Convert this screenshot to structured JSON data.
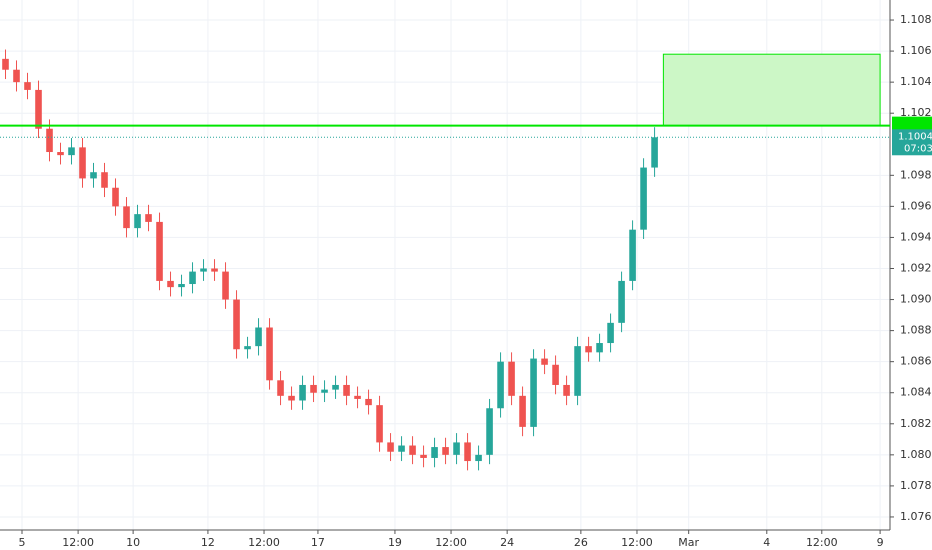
{
  "chart_data": {
    "type": "candlestick",
    "up_color": "#26a69a",
    "down_color": "#ef5350",
    "grid": true,
    "xlim": [
      0,
      80.9
    ],
    "xticks": [
      {
        "value": 2,
        "label": "5"
      },
      {
        "value": 7.1,
        "label": "12:00"
      },
      {
        "value": 12.1,
        "label": "10"
      },
      {
        "value": 18.9,
        "label": "12"
      },
      {
        "value": 24,
        "label": "12:00"
      },
      {
        "value": 28.9,
        "label": "17"
      },
      {
        "value": 35.9,
        "label": "19"
      },
      {
        "value": 41,
        "label": "12:00"
      },
      {
        "value": 46.1,
        "label": "24"
      },
      {
        "value": 52.8,
        "label": "26"
      },
      {
        "value": 57.9,
        "label": "12:00"
      },
      {
        "value": 62.6,
        "label": "Mar"
      },
      {
        "value": 69.7,
        "label": "4"
      },
      {
        "value": 74.7,
        "label": "12:00"
      },
      {
        "value": 80,
        "label": "9"
      }
    ],
    "ylim": [
      1.07516,
      1.10929
    ],
    "yticks": [
      {
        "value": 1.076,
        "label": "1.07600"
      },
      {
        "value": 1.078,
        "label": "1.07800"
      },
      {
        "value": 1.08,
        "label": "1.08000"
      },
      {
        "value": 1.082,
        "label": "1.08200"
      },
      {
        "value": 1.084,
        "label": "1.08400"
      },
      {
        "value": 1.086,
        "label": "1.08600"
      },
      {
        "value": 1.088,
        "label": "1.08800"
      },
      {
        "value": 1.09,
        "label": "1.09000"
      },
      {
        "value": 1.092,
        "label": "1.09200"
      },
      {
        "value": 1.094,
        "label": "1.09400"
      },
      {
        "value": 1.096,
        "label": "1.09600"
      },
      {
        "value": 1.098,
        "label": "1.09800"
      },
      {
        "value": 1.102,
        "label": "1.10200"
      },
      {
        "value": 1.104,
        "label": "1.10400"
      },
      {
        "value": 1.106,
        "label": "1.10600"
      },
      {
        "value": 1.108,
        "label": "1.10800"
      }
    ],
    "x": [
      0.5,
      1.5,
      2.5,
      3.5,
      4.5,
      5.5,
      6.5,
      7.5,
      8.5,
      9.5,
      10.5,
      11.5,
      12.5,
      13.5,
      14.5,
      15.5,
      16.5,
      17.5,
      18.5,
      19.5,
      20.5,
      21.5,
      22.5,
      23.5,
      24.5,
      25.5,
      26.5,
      27.5,
      28.5,
      29.5,
      30.5,
      31.5,
      32.5,
      33.5,
      34.5,
      35.5,
      36.5,
      37.5,
      38.5,
      39.5,
      40.5,
      41.5,
      42.5,
      43.5,
      44.5,
      45.5,
      46.5,
      47.5,
      48.5,
      49.5,
      50.5,
      51.5,
      52.5,
      53.5,
      54.5,
      55.5,
      56.5,
      57.5,
      58.5,
      59.5
    ],
    "open": [
      1.1055,
      1.1048,
      1.104,
      1.1035,
      1.101,
      1.0995,
      1.0993,
      1.0998,
      1.0978,
      1.0982,
      1.0972,
      1.096,
      1.0946,
      1.0955,
      1.095,
      1.0912,
      1.0908,
      1.091,
      1.0918,
      1.092,
      1.0918,
      1.09,
      1.0868,
      1.087,
      1.0882,
      1.0848,
      1.0838,
      1.0835,
      1.0845,
      1.084,
      1.0842,
      1.0845,
      1.0838,
      1.0836,
      1.0832,
      1.0808,
      1.0802,
      1.0806,
      1.08,
      1.0798,
      1.0805,
      1.08,
      1.0808,
      1.0796,
      1.08,
      1.083,
      1.086,
      1.0838,
      1.0818,
      1.0862,
      1.0858,
      1.0845,
      1.0838,
      1.087,
      1.0866,
      1.0872,
      1.0885,
      1.0912,
      1.0945,
      1.0985
    ],
    "high": [
      1.1061,
      1.1054,
      1.1046,
      1.1041,
      1.1016,
      1.1001,
      1.1004,
      1.1004,
      1.0988,
      1.0988,
      1.0978,
      1.0966,
      1.0961,
      1.0961,
      1.0956,
      1.0918,
      1.0916,
      1.0924,
      1.0926,
      1.0926,
      1.0924,
      1.0906,
      1.0876,
      1.0888,
      1.0888,
      1.0854,
      1.0844,
      1.0851,
      1.0851,
      1.0848,
      1.0851,
      1.0851,
      1.0844,
      1.0842,
      1.0838,
      1.0814,
      1.0812,
      1.0812,
      1.0806,
      1.0811,
      1.0811,
      1.0814,
      1.0814,
      1.0806,
      1.0836,
      1.0866,
      1.0866,
      1.0844,
      1.0868,
      1.0868,
      1.0864,
      1.0851,
      1.0876,
      1.0876,
      1.0878,
      1.0891,
      1.0918,
      1.0951,
      1.0991,
      1.1011
    ],
    "low": [
      1.1042,
      1.1034,
      1.1029,
      1.1004,
      1.0989,
      1.0987,
      1.0987,
      1.0972,
      1.0972,
      1.0966,
      1.0954,
      1.094,
      1.094,
      1.0944,
      1.0906,
      1.0902,
      1.0902,
      1.0904,
      1.0912,
      1.0912,
      1.0894,
      1.0862,
      1.0862,
      1.0864,
      1.0842,
      1.0832,
      1.0829,
      1.0829,
      1.0834,
      1.0834,
      1.0836,
      1.0832,
      1.083,
      1.0826,
      1.0802,
      1.0796,
      1.0796,
      1.0794,
      1.0792,
      1.0792,
      1.0794,
      1.0794,
      1.079,
      1.079,
      1.0794,
      1.0824,
      1.0832,
      1.0812,
      1.0812,
      1.0852,
      1.0839,
      1.0832,
      1.0832,
      1.086,
      1.086,
      1.0866,
      1.0879,
      1.0906,
      1.0939,
      1.0979
    ],
    "close": [
      1.1048,
      1.104,
      1.1035,
      1.101,
      1.0995,
      1.0993,
      1.0998,
      1.0978,
      1.0982,
      1.0972,
      1.096,
      1.0946,
      1.0955,
      1.095,
      1.0912,
      1.0908,
      1.091,
      1.0918,
      1.092,
      1.0918,
      1.09,
      1.0868,
      1.087,
      1.0882,
      1.0848,
      1.0838,
      1.0835,
      1.0845,
      1.084,
      1.0842,
      1.0845,
      1.0838,
      1.0836,
      1.0832,
      1.0808,
      1.0802,
      1.0806,
      1.08,
      1.0798,
      1.0805,
      1.08,
      1.0808,
      1.0796,
      1.08,
      1.083,
      1.086,
      1.0838,
      1.0818,
      1.0862,
      1.0858,
      1.0845,
      1.0838,
      1.087,
      1.0866,
      1.0872,
      1.0885,
      1.0912,
      1.0945,
      1.0985,
      1.10045
    ],
    "zone": {
      "x0": 60.3,
      "x1": 80,
      "y0": 1.1012,
      "y1": 1.1058,
      "color": "#ccf7c6",
      "edge": "#00e600"
    },
    "hline": 1.1012,
    "last_price_label": "1.10045",
    "countdown": "07:03"
  }
}
